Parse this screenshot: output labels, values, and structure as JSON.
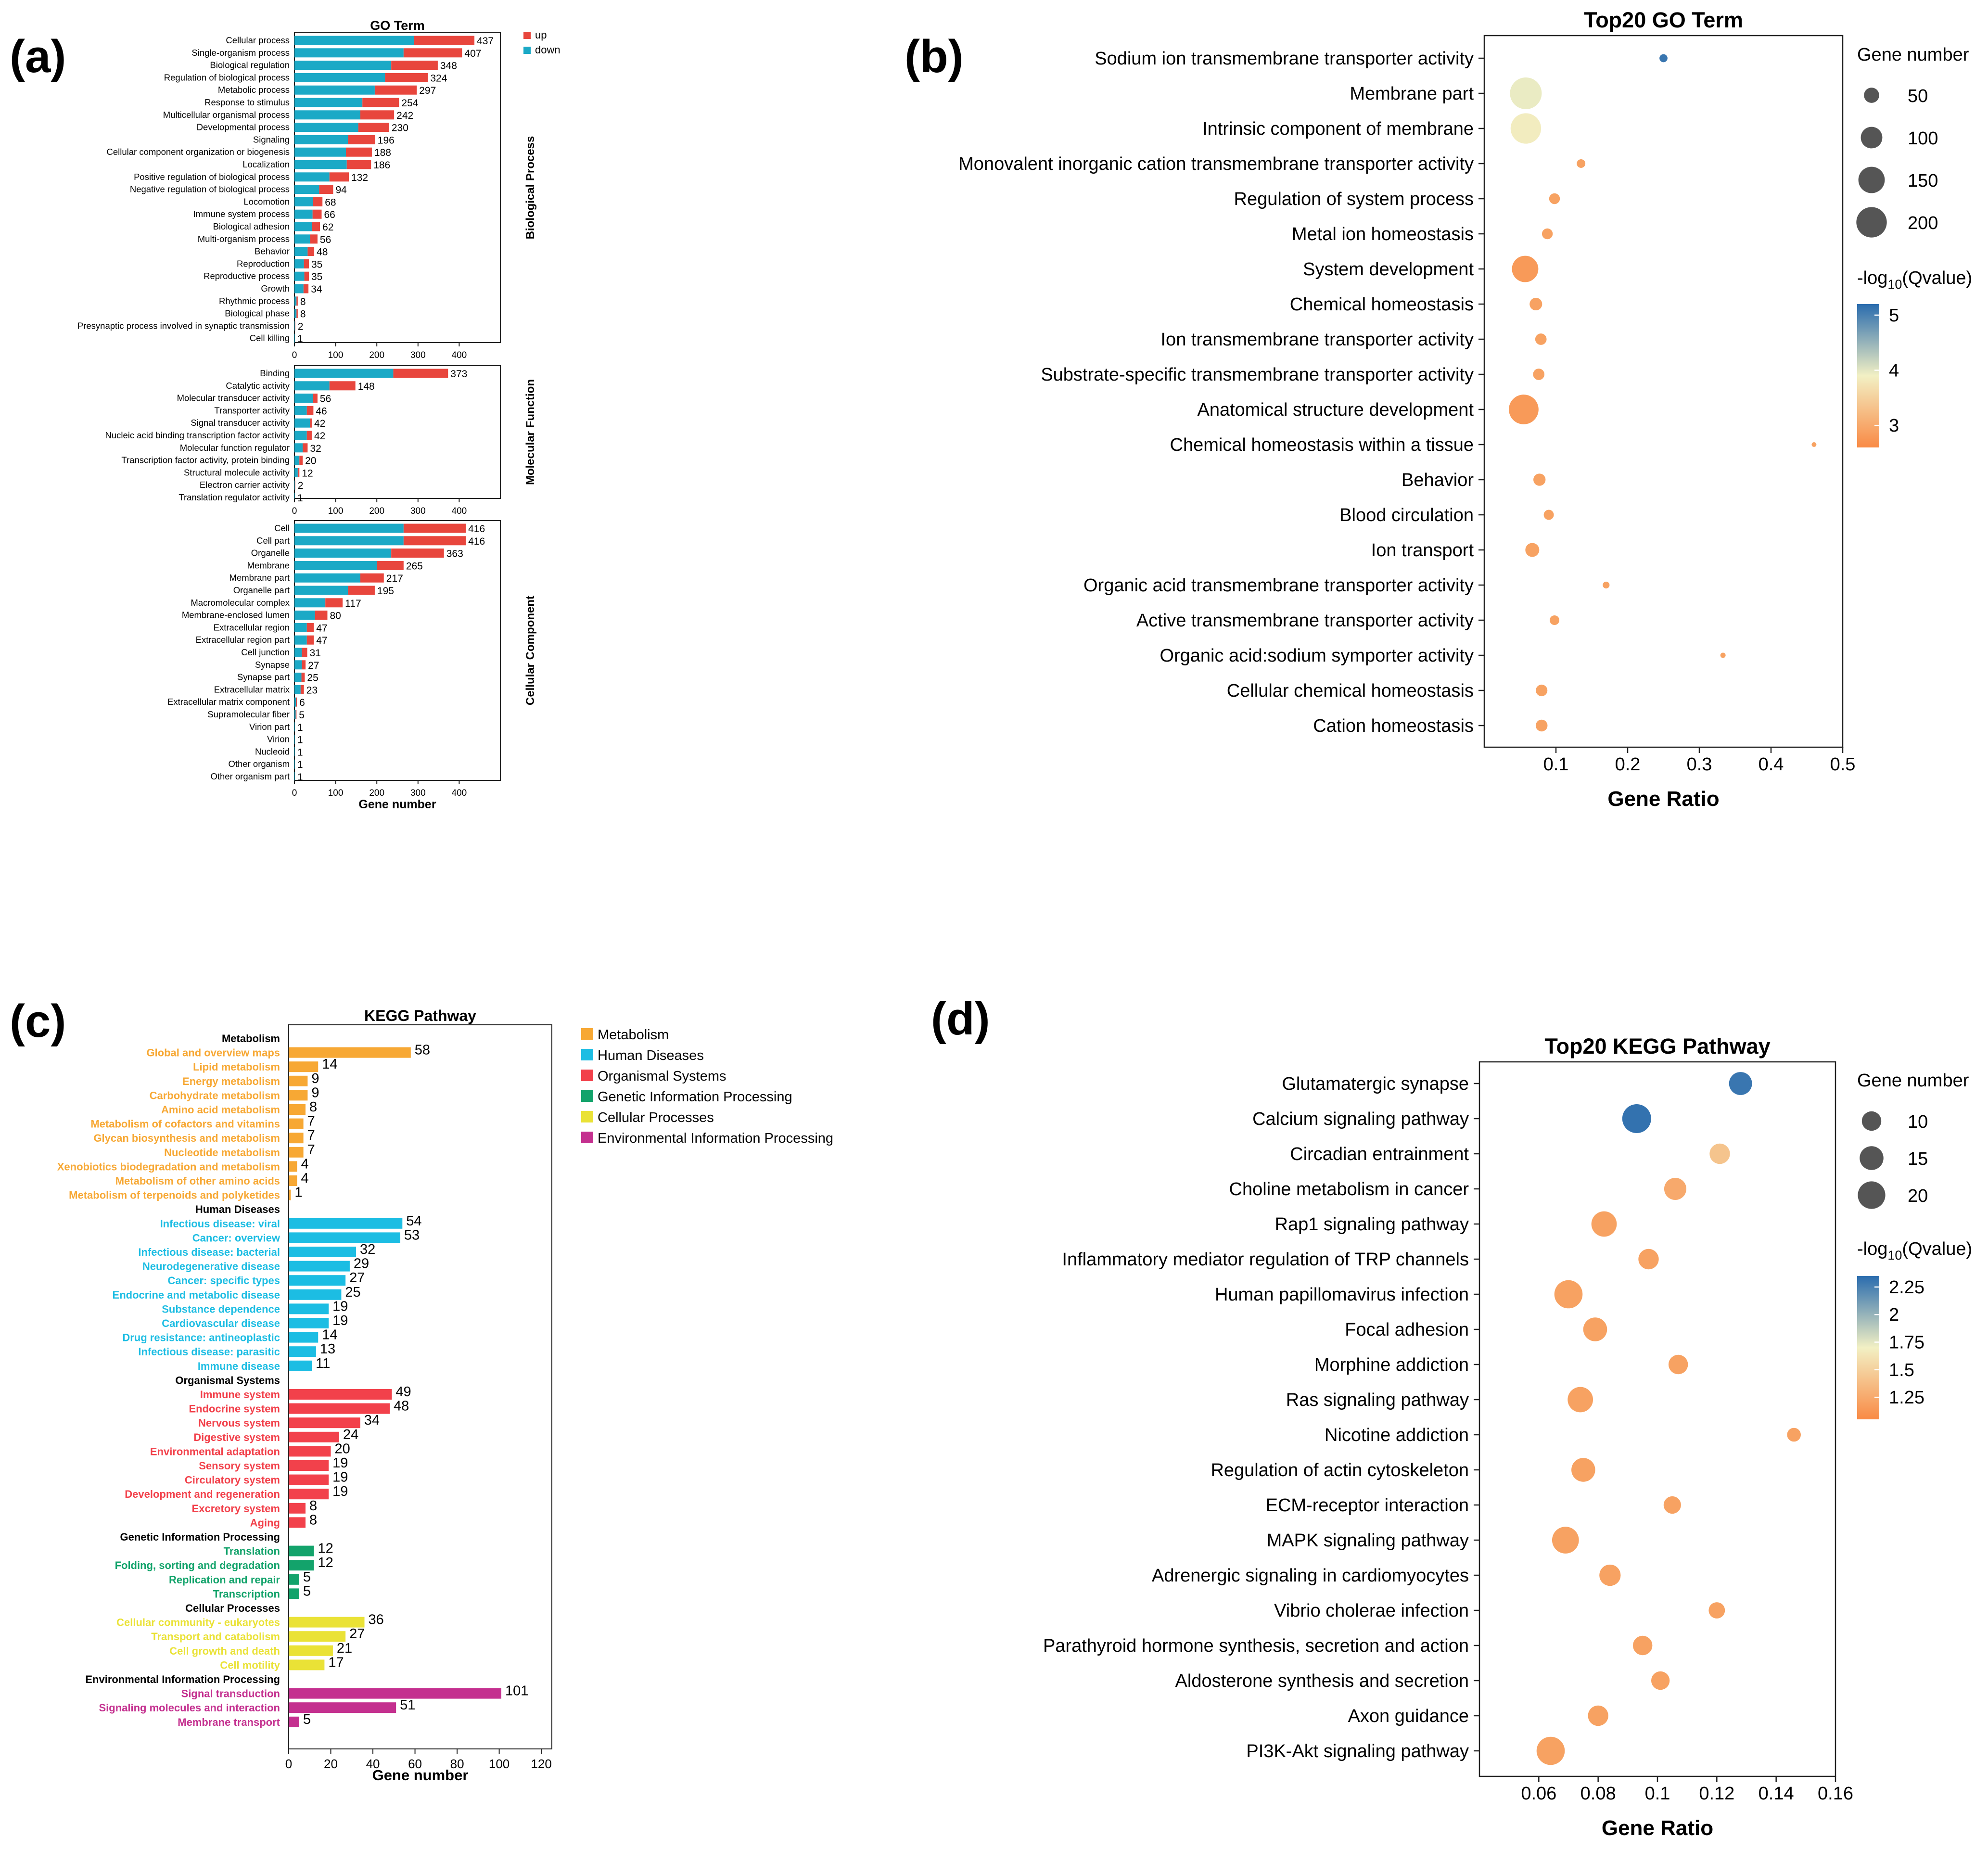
{
  "panel_labels": [
    "(a)",
    "(b)",
    "(c)",
    "(d)"
  ],
  "colors": {
    "up": "#e8463d",
    "down": "#1ba9c6",
    "metabolism": "#f7a834",
    "human_diseases": "#1cbde3",
    "organismal_systems": "#f2414b",
    "genetic_information_processing": "#13a36b",
    "cellular_processes": "#eae236",
    "environmental_information_processing": "#c4308f",
    "grad_high": "#2a6cae",
    "grad_mid": "#f2f0c4",
    "grad_low": "#f98a45"
  },
  "chart_data": [
    {
      "id": "a",
      "type": "bar",
      "stacked": true,
      "orientation": "horizontal",
      "title": "GO Term",
      "xlabel": "Gene number",
      "xlim": [
        0,
        500
      ],
      "xticks": [
        0,
        100,
        200,
        300,
        400
      ],
      "legend": {
        "position": "top-right",
        "items": [
          "up",
          "down"
        ]
      },
      "groups": [
        {
          "name": "Biological Process",
          "categories": [
            "Cellular process",
            "Single-organism process",
            "Biological regulation",
            "Regulation of biological process",
            "Metabolic process",
            "Response to stimulus",
            "Multicellular organismal process",
            "Developmental process",
            "Signaling",
            "Cellular component organization or biogenesis",
            "Localization",
            "Positive regulation of biological process",
            "Negative regulation of biological process",
            "Locomotion",
            "Immune system process",
            "Biological adhesion",
            "Multi-organism process",
            "Behavior",
            "Reproduction",
            "Reproductive process",
            "Growth",
            "Rhythmic process",
            "Biological phase",
            "Presynaptic process involved in synaptic transmission",
            "Cell killing"
          ],
          "totals": [
            437,
            407,
            348,
            324,
            297,
            254,
            242,
            230,
            196,
            188,
            186,
            132,
            94,
            68,
            66,
            62,
            56,
            48,
            35,
            35,
            34,
            8,
            8,
            2,
            1
          ],
          "down": [
            290,
            265,
            235,
            220,
            195,
            165,
            160,
            155,
            130,
            125,
            127,
            85,
            60,
            45,
            44,
            43,
            38,
            32,
            23,
            24,
            22,
            5,
            5,
            1,
            1
          ]
        },
        {
          "name": "Molecular Function",
          "categories": [
            "Binding",
            "Catalytic activity",
            "Molecular transducer activity",
            "Transporter activity",
            "Signal transducer activity",
            "Nucleic acid binding transcription factor activity",
            "Molecular function regulator",
            "Transcription factor activity, protein binding",
            "Structural molecule activity",
            "Electron carrier activity",
            "Translation regulator activity"
          ],
          "totals": [
            373,
            148,
            56,
            46,
            42,
            42,
            32,
            20,
            12,
            2,
            1
          ],
          "down": [
            240,
            85,
            45,
            30,
            38,
            30,
            20,
            12,
            8,
            1,
            1
          ]
        },
        {
          "name": "Cellular Component",
          "categories": [
            "Cell",
            "Cell part",
            "Organelle",
            "Membrane",
            "Membrane part",
            "Organelle part",
            "Macromolecular complex",
            "Membrane-enclosed lumen",
            "Extracellular region",
            "Extracellular region part",
            "Cell junction",
            "Synapse",
            "Synapse part",
            "Extracellular matrix",
            "Extracellular matrix component",
            "Supramolecular fiber",
            "Virion part",
            "Virion",
            "Nucleoid",
            "Other organism",
            "Other organism part"
          ],
          "totals": [
            416,
            416,
            363,
            265,
            217,
            195,
            117,
            80,
            47,
            47,
            31,
            27,
            25,
            23,
            6,
            5,
            1,
            1,
            1,
            1,
            1
          ],
          "down": [
            265,
            265,
            235,
            200,
            160,
            130,
            75,
            50,
            30,
            30,
            18,
            18,
            17,
            15,
            4,
            3,
            1,
            1,
            1,
            1,
            1
          ]
        }
      ]
    },
    {
      "id": "b",
      "type": "scatter",
      "title": "Top20 GO Term",
      "xlabel": "Gene Ratio",
      "xlim": [
        0,
        0.5
      ],
      "xticks": [
        0.1,
        0.2,
        0.3,
        0.4,
        0.5
      ],
      "tick_labels": [
        "0.1",
        "0.2",
        "0.3",
        "0.4",
        "0.5"
      ],
      "size_legend_title": "Gene number",
      "size_legend": [
        50,
        100,
        150,
        200
      ],
      "color_legend_title": "-log10(Qvalue)",
      "color_range": [
        2.6,
        5.2
      ],
      "color_ticks": [
        3,
        4,
        5
      ],
      "terms": [
        "Sodium ion transmembrane transporter activity",
        "Membrane part",
        "Intrinsic component of membrane",
        "Monovalent inorganic cation transmembrane transporter activity",
        "Regulation of system process",
        "Metal ion homeostasis",
        "System development",
        "Chemical homeostasis",
        "Ion transmembrane transporter activity",
        "Substrate-specific transmembrane transporter activity",
        "Anatomical structure development",
        "Chemical homeostasis within a tissue",
        "Behavior",
        "Blood circulation",
        "Ion transport",
        "Organic acid transmembrane transporter activity",
        "Active transmembrane transporter activity",
        "Organic acid:sodium symporter activity",
        "Cellular chemical homeostasis",
        "Cation homeostasis"
      ],
      "gene_ratio": [
        0.25,
        0.058,
        0.058,
        0.135,
        0.098,
        0.088,
        0.057,
        0.072,
        0.079,
        0.076,
        0.055,
        0.46,
        0.077,
        0.09,
        0.067,
        0.17,
        0.098,
        0.333,
        0.08,
        0.08
      ],
      "gene_number": [
        14,
        217,
        200,
        16,
        25,
        25,
        150,
        34,
        28,
        28,
        190,
        5,
        32,
        22,
        42,
        10,
        20,
        6,
        29,
        30
      ],
      "neglog10_q": [
        5.1,
        3.95,
        3.85,
        2.9,
        2.9,
        2.9,
        2.8,
        2.9,
        2.9,
        2.9,
        2.8,
        2.9,
        2.9,
        2.9,
        2.9,
        2.9,
        2.9,
        2.9,
        2.9,
        2.9
      ]
    },
    {
      "id": "c",
      "type": "bar",
      "orientation": "horizontal",
      "title": "KEGG Pathway",
      "xlabel": "Gene number",
      "xlim": [
        0,
        125
      ],
      "xticks": [
        0,
        20,
        40,
        60,
        80,
        100,
        120
      ],
      "legend": {
        "position": "top-right",
        "items": [
          "Metabolism",
          "Human Diseases",
          "Organismal Systems",
          "Genetic Information Processing",
          "Cellular Processes",
          "Environmental Information Processing"
        ]
      },
      "groups": [
        {
          "name": "Metabolism",
          "color_key": "metabolism",
          "categories": [
            "Global and overview maps",
            "Lipid metabolism",
            "Energy metabolism",
            "Carbohydrate metabolism",
            "Amino acid metabolism",
            "Metabolism of cofactors and vitamins",
            "Glycan biosynthesis and metabolism",
            "Nucleotide metabolism",
            "Xenobiotics biodegradation and metabolism",
            "Metabolism of other amino acids",
            "Metabolism of terpenoids and polyketides"
          ],
          "values": [
            58,
            14,
            9,
            9,
            8,
            7,
            7,
            7,
            4,
            4,
            1
          ]
        },
        {
          "name": "Human Diseases",
          "color_key": "human_diseases",
          "categories": [
            "Infectious disease: viral",
            "Cancer: overview",
            "Infectious disease: bacterial",
            "Neurodegenerative disease",
            "Cancer: specific types",
            "Endocrine and metabolic disease",
            "Substance dependence",
            "Cardiovascular disease",
            "Drug resistance: antineoplastic",
            "Infectious disease: parasitic",
            "Immune disease"
          ],
          "values": [
            54,
            53,
            32,
            29,
            27,
            25,
            19,
            19,
            14,
            13,
            11
          ]
        },
        {
          "name": "Organismal Systems",
          "color_key": "organismal_systems",
          "categories": [
            "Immune system",
            "Endocrine system",
            "Nervous system",
            "Digestive system",
            "Environmental adaptation",
            "Sensory system",
            "Circulatory system",
            "Development and regeneration",
            "Excretory system",
            "Aging"
          ],
          "values": [
            49,
            48,
            34,
            24,
            20,
            19,
            19,
            19,
            8,
            8
          ]
        },
        {
          "name": "Genetic Information Processing",
          "color_key": "genetic_information_processing",
          "categories": [
            "Translation",
            "Folding, sorting and degradation",
            "Replication and repair",
            "Transcription"
          ],
          "values": [
            12,
            12,
            5,
            5
          ]
        },
        {
          "name": "Cellular Processes",
          "color_key": "cellular_processes",
          "categories": [
            "Cellular community - eukaryotes",
            "Transport and catabolism",
            "Cell growth and death",
            "Cell motility"
          ],
          "values": [
            36,
            27,
            21,
            17
          ]
        },
        {
          "name": "Environmental Information Processing",
          "color_key": "environmental_information_processing",
          "categories": [
            "Signal transduction",
            "Signaling molecules and interaction",
            "Membrane transport"
          ],
          "values": [
            101,
            51,
            5
          ]
        }
      ]
    },
    {
      "id": "d",
      "type": "scatter",
      "title": "Top20 KEGG Pathway",
      "xlabel": "Gene Ratio",
      "xlim": [
        0.04,
        0.16
      ],
      "xticks": [
        0.06,
        0.08,
        0.1,
        0.12,
        0.14,
        0.16
      ],
      "tick_labels": [
        "0.06",
        "0.08",
        "0.1",
        "0.12",
        "0.14",
        "0.16"
      ],
      "size_legend_title": "Gene number",
      "size_legend": [
        10,
        15,
        20
      ],
      "color_legend_title": "-log10(Qvalue)",
      "color_range": [
        1.05,
        2.35
      ],
      "color_ticks": [
        1.25,
        1.5,
        1.75,
        2,
        2.25
      ],
      "color_tick_labels": [
        "1.25",
        "1.5",
        "1.75",
        "2",
        "2.25"
      ],
      "terms": [
        "Glutamatergic synapse",
        "Calcium signaling pathway",
        "Circadian entrainment",
        "Choline metabolism in cancer",
        "Rap1 signaling pathway",
        "Inflammatory mediator regulation of TRP channels",
        "Human papillomavirus infection",
        "Focal adhesion",
        "Morphine addiction",
        "Ras signaling pathway",
        "Nicotine addiction",
        "Regulation of actin cytoskeleton",
        "ECM-receptor interaction",
        "MAPK signaling pathway",
        "Adrenergic signaling in cardiomyocytes",
        "Vibrio cholerae infection",
        "Parathyroid hormone synthesis, secretion and action",
        "Aldosterone synthesis and secretion",
        "Axon guidance",
        "PI3K-Akt signaling pathway"
      ],
      "gene_ratio": [
        0.128,
        0.093,
        0.121,
        0.106,
        0.082,
        0.097,
        0.07,
        0.079,
        0.107,
        0.074,
        0.146,
        0.075,
        0.105,
        0.069,
        0.084,
        0.12,
        0.095,
        0.101,
        0.08,
        0.064
      ],
      "gene_number": [
        14,
        22,
        11,
        13,
        17,
        11,
        21,
        15,
        10,
        17,
        5,
        15,
        8,
        19,
        12,
        7,
        10,
        9,
        11,
        21
      ],
      "neglog10_q": [
        2.3,
        2.32,
        1.42,
        1.25,
        1.2,
        1.2,
        1.2,
        1.2,
        1.2,
        1.2,
        1.2,
        1.2,
        1.2,
        1.2,
        1.2,
        1.2,
        1.2,
        1.2,
        1.2,
        1.2
      ]
    }
  ]
}
